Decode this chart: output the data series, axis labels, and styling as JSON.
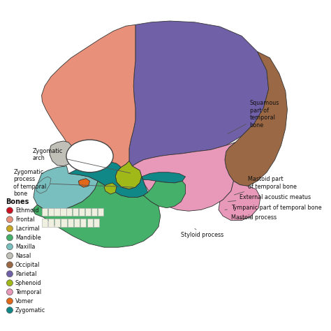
{
  "background_color": "#ffffff",
  "legend_title": "Bones",
  "legend_items": [
    {
      "label": "Ethmoid",
      "color": "#cc1122"
    },
    {
      "label": "Frontal",
      "color": "#e8907a"
    },
    {
      "label": "Lacrimal",
      "color": "#c8a820"
    },
    {
      "label": "Mandible",
      "color": "#45b06a"
    },
    {
      "label": "Maxilla",
      "color": "#7abfbf"
    },
    {
      "label": "Nasal",
      "color": "#c0c0b8"
    },
    {
      "label": "Occipital",
      "color": "#9a6845"
    },
    {
      "label": "Parietal",
      "color": "#7060a8"
    },
    {
      "label": "Sphenoid",
      "color": "#a0b818"
    },
    {
      "label": "Temporal",
      "color": "#e898b8"
    },
    {
      "label": "Vomer",
      "color": "#e06818"
    },
    {
      "label": "Zygomatic",
      "color": "#108888"
    }
  ],
  "figsize": [
    4.74,
    4.74
  ],
  "dpi": 100
}
